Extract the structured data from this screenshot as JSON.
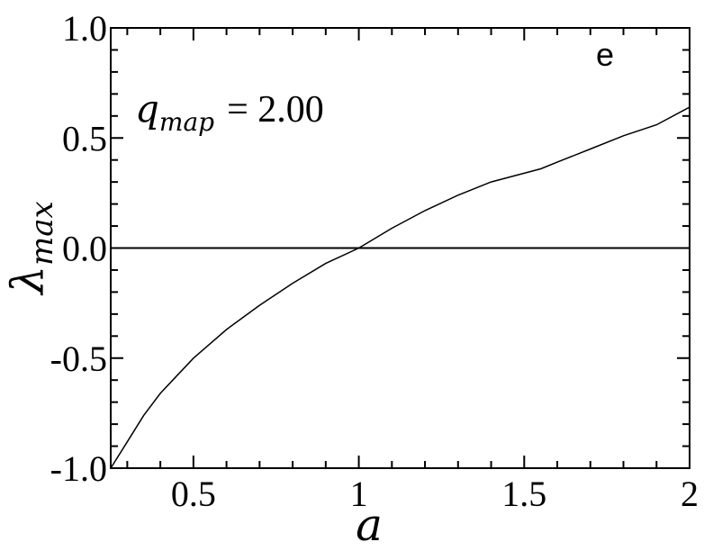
{
  "chart_data": {
    "type": "line",
    "xlabel": "a",
    "ylabel": {
      "base": "λ",
      "subscript": "max"
    },
    "xlim": [
      0.25,
      2.0
    ],
    "ylim": [
      -1.0,
      1.0
    ],
    "xticks": [
      {
        "value": 0.5,
        "label": "0.5"
      },
      {
        "value": 1.0,
        "label": "1"
      },
      {
        "value": 1.5,
        "label": "1.5"
      },
      {
        "value": 2.0,
        "label": "2"
      }
    ],
    "yticks": [
      {
        "value": -1.0,
        "label": "-1.0"
      },
      {
        "value": -0.5,
        "label": "-0.5"
      },
      {
        "value": 0.0,
        "label": "0.0"
      },
      {
        "value": 0.5,
        "label": "0.5"
      },
      {
        "value": 1.0,
        "label": "1.0"
      }
    ],
    "x_minor_step": 0.1,
    "y_minor_step": 0.1,
    "grid": false,
    "legend": "none",
    "panel_label": "e",
    "annotation": {
      "symbol": "q",
      "subscript": "map",
      "value": "= 2.00"
    },
    "reference_line": {
      "y": 0.0
    },
    "series": [
      {
        "x": [
          0.25,
          0.3,
          0.35,
          0.4,
          0.45,
          0.5,
          0.6,
          0.7,
          0.8,
          0.9,
          1.0,
          1.1,
          1.2,
          1.3,
          1.4,
          1.5,
          1.55,
          1.6,
          1.7,
          1.8,
          1.9,
          2.0
        ],
        "y": [
          -1.0,
          -0.88,
          -0.76,
          -0.66,
          -0.58,
          -0.5,
          -0.37,
          -0.26,
          -0.16,
          -0.07,
          0.0,
          0.09,
          0.17,
          0.24,
          0.3,
          0.34,
          0.36,
          0.39,
          0.45,
          0.51,
          0.56,
          0.64
        ]
      }
    ],
    "colors": {
      "line": "#000000",
      "axes": "#000000",
      "background": "#ffffff"
    }
  }
}
